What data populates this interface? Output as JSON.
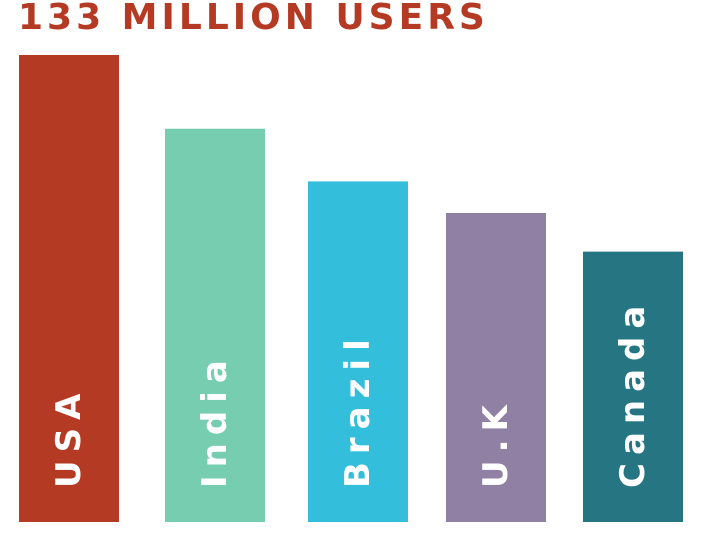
{
  "chart_data": {
    "type": "bar",
    "title": "133 MILLION USERS",
    "categories": [
      "USA",
      "India",
      "Brazil",
      "U.K",
      "Canada"
    ],
    "values": [
      133,
      112,
      97,
      88,
      77
    ],
    "colors": [
      "#b53a23",
      "#77cdb0",
      "#33bfdc",
      "#9080a3",
      "#257682"
    ],
    "ylim": [
      0,
      133
    ],
    "grid": false,
    "legend": "none",
    "xlabel": "",
    "ylabel": ""
  }
}
